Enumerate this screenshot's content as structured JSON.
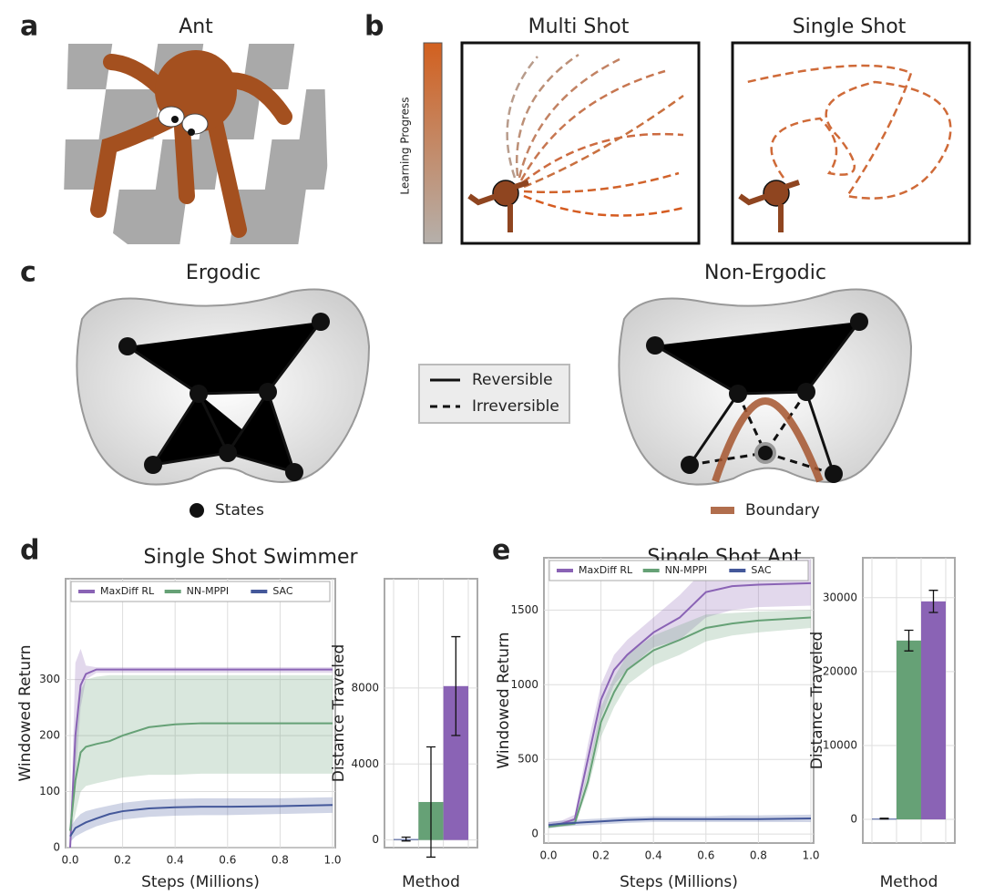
{
  "panel_labels": [
    "a",
    "b",
    "c",
    "d",
    "e"
  ],
  "panel_a": {
    "title": "Ant"
  },
  "panel_b": {
    "colorbar_label": "Learning Progress",
    "left_title": "Multi Shot",
    "right_title": "Single Shot"
  },
  "panel_c": {
    "left_title": "Ergodic",
    "right_title": "Non-Ergodic",
    "legend": [
      "Reversible",
      "Irreversible"
    ],
    "states_label": "States",
    "boundary_label": "Boundary"
  },
  "chart_data": [
    {
      "type": "line",
      "title": "Single Shot Swimmer",
      "xlabel": "Steps (Millions)",
      "ylabel": "Windowed Return",
      "legend": "upper center",
      "grid": true,
      "x": [
        0,
        0.02,
        0.04,
        0.06,
        0.1,
        0.15,
        0.2,
        0.3,
        0.4,
        0.5,
        0.6,
        0.8,
        1
      ],
      "xlim": [
        0,
        1
      ],
      "xticks": [
        {
          "value": 0,
          "label": "0.0"
        },
        0.2,
        0.4,
        0.6,
        0.8,
        {
          "value": 1,
          "label": "1.0"
        }
      ],
      "ylim": [
        0,
        480
      ],
      "yticks": [
        0,
        100,
        200,
        300
      ],
      "series": [
        {
          "name": "MaxDiff RL",
          "color": "#8a63b5",
          "values": [
            0,
            200,
            290,
            310,
            318,
            318,
            318,
            318,
            318,
            318,
            318,
            318,
            318
          ],
          "lower": [
            0,
            120,
            250,
            300,
            312,
            312,
            312,
            312,
            312,
            312,
            312,
            312,
            312
          ],
          "upper": [
            0,
            330,
            355,
            325,
            322,
            322,
            322,
            322,
            322,
            322,
            322,
            322,
            322
          ]
        },
        {
          "name": "NN-MPPI",
          "color": "#66a176",
          "values": [
            30,
            120,
            170,
            180,
            185,
            190,
            200,
            215,
            220,
            222,
            222,
            222,
            222
          ],
          "lower": [
            20,
            60,
            100,
            110,
            115,
            120,
            125,
            130,
            130,
            132,
            132,
            132,
            132
          ],
          "upper": [
            40,
            220,
            280,
            300,
            305,
            308,
            308,
            308,
            308,
            308,
            308,
            308,
            308
          ]
        },
        {
          "name": "SAC",
          "color": "#44589a",
          "values": [
            20,
            35,
            40,
            45,
            52,
            60,
            65,
            70,
            72,
            73,
            73,
            74,
            76
          ],
          "lower": [
            10,
            20,
            25,
            30,
            38,
            45,
            50,
            55,
            57,
            58,
            58,
            60,
            62
          ],
          "upper": [
            35,
            50,
            60,
            65,
            70,
            75,
            80,
            85,
            87,
            88,
            88,
            88,
            90
          ]
        }
      ]
    },
    {
      "type": "bar",
      "xlabel": "Method",
      "ylabel": "Distance Traveled",
      "grid": true,
      "categories": [
        null,
        null,
        null
      ],
      "values": [
        50,
        2000,
        8100
      ],
      "errors": [
        100,
        2900,
        2600
      ],
      "colors": [
        "#44589a",
        "#66a176",
        "#8a63b5"
      ],
      "ylim": [
        -400,
        13750
      ],
      "yticks": [
        0,
        4000,
        8000
      ]
    },
    {
      "type": "line",
      "title": "Single Shot Ant",
      "xlabel": "Steps (Millions)",
      "ylabel": "Windowed Return",
      "legend": "upper center",
      "grid": true,
      "x": [
        0,
        0.05,
        0.1,
        0.15,
        0.2,
        0.25,
        0.3,
        0.4,
        0.5,
        0.6,
        0.7,
        0.8,
        1
      ],
      "xlim": [
        0,
        1
      ],
      "xticks": [
        {
          "value": 0,
          "label": "0.0"
        },
        0.2,
        0.4,
        0.6,
        0.8,
        {
          "value": 1,
          "label": "1.0"
        }
      ],
      "ylim": [
        -60,
        1850
      ],
      "yticks": [
        0,
        500,
        1000,
        1500
      ],
      "series": [
        {
          "name": "MaxDiff RL",
          "color": "#8a63b5",
          "values": [
            60,
            70,
            100,
            500,
            900,
            1100,
            1200,
            1350,
            1450,
            1620,
            1660,
            1670,
            1680
          ],
          "lower": [
            40,
            55,
            80,
            400,
            780,
            1000,
            1100,
            1250,
            1300,
            1450,
            1500,
            1520,
            1530
          ],
          "upper": [
            80,
            90,
            130,
            600,
            1000,
            1200,
            1300,
            1450,
            1600,
            1780,
            1820,
            1830,
            1840
          ]
        },
        {
          "name": "NN-MPPI",
          "color": "#66a176",
          "values": [
            50,
            60,
            70,
            350,
            750,
            950,
            1100,
            1230,
            1300,
            1380,
            1410,
            1430,
            1450
          ],
          "lower": [
            40,
            50,
            60,
            300,
            650,
            850,
            1000,
            1130,
            1200,
            1290,
            1330,
            1350,
            1380
          ],
          "upper": [
            60,
            70,
            90,
            420,
            850,
            1050,
            1200,
            1330,
            1400,
            1470,
            1480,
            1490,
            1500
          ]
        },
        {
          "name": "SAC",
          "color": "#44589a",
          "values": [
            60,
            70,
            75,
            80,
            85,
            90,
            95,
            100,
            100,
            100,
            100,
            100,
            105
          ],
          "lower": [
            40,
            50,
            55,
            60,
            65,
            70,
            75,
            80,
            80,
            80,
            80,
            80,
            80
          ],
          "upper": [
            80,
            90,
            95,
            100,
            105,
            110,
            115,
            120,
            120,
            120,
            125,
            125,
            130
          ]
        }
      ]
    },
    {
      "type": "bar",
      "xlabel": "Method",
      "ylabel": "Distance Traveled",
      "grid": true,
      "categories": [
        null,
        null,
        null
      ],
      "values": [
        100,
        24200,
        29500
      ],
      "errors": [
        50,
        1400,
        1500
      ],
      "colors": [
        "#44589a",
        "#66a176",
        "#8a63b5"
      ],
      "ylim": [
        -3200,
        35400
      ],
      "yticks": [
        0,
        10000,
        20000,
        30000
      ]
    }
  ]
}
